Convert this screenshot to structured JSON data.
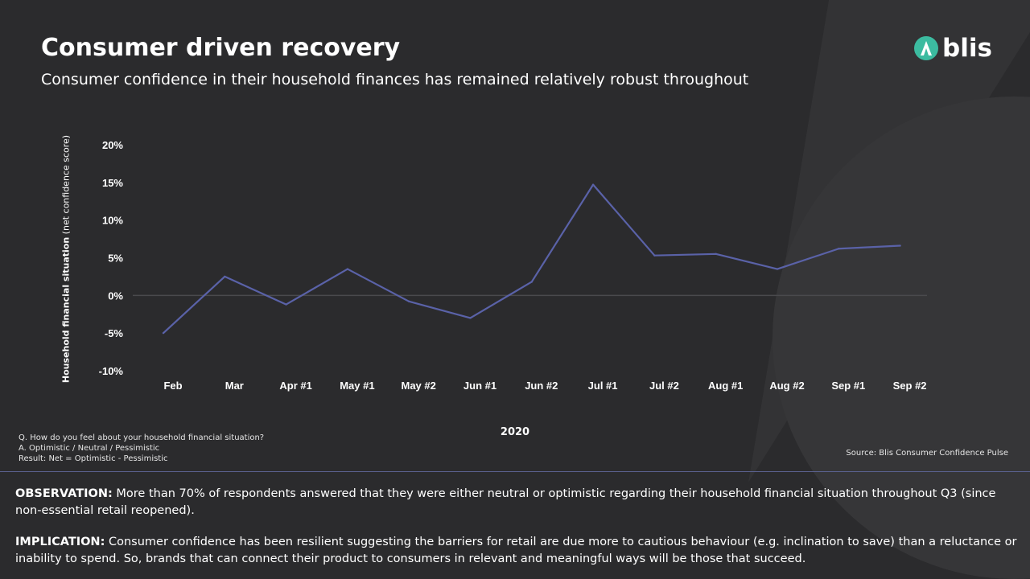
{
  "slide": {
    "title": "Consumer driven recovery",
    "subtitle": "Consumer confidence in their household finances has remained relatively robust throughout"
  },
  "logo": {
    "text": "blis",
    "icon": "blis-logo-icon",
    "color": "#3cbba0"
  },
  "chart_data": {
    "type": "line",
    "categories": [
      "Feb",
      "Mar",
      "Apr #1",
      "May #1",
      "May #2",
      "Jun #1",
      "Jun #2",
      "Jul #1",
      "Jul #2",
      "Aug #1",
      "Aug #2",
      "Sep #1",
      "Sep #2"
    ],
    "series": [
      {
        "values": [
          -5,
          2.5,
          -1.2,
          3.5,
          -0.8,
          -3,
          1.8,
          14.7,
          5.3,
          5.5,
          3.5,
          6.2,
          6.6
        ]
      }
    ],
    "yticks": [
      "20%",
      "15%",
      "10%",
      "5%",
      "0%",
      "-5%",
      "-10%"
    ],
    "ylim": [
      -10,
      20
    ],
    "ylabel_bold": "Household financial situation",
    "ylabel_rest": "(net confidence score)",
    "xlabel": "2020",
    "line_color": "#5a62a8",
    "zero_line": true
  },
  "notes": {
    "question": "Q. How do you feel about your household financial situation?",
    "answer": "A. Optimistic / Neutral / Pessimistic",
    "result": "Result: Net = Optimistic - Pessimistic",
    "source": "Source: Blis Consumer Confidence Pulse"
  },
  "observation": {
    "label": "OBSERVATION:",
    "text": " More than 70% of respondents answered that they were either neutral or optimistic regarding their household financial situation throughout Q3 (since non-essential retail reopened)."
  },
  "implication": {
    "label": "IMPLICATION:",
    "text": " Consumer confidence has been resilient suggesting the barriers for retail are due more to cautious behaviour (e.g. inclination to save) than a reluctance or inability to spend. So, brands that can connect their product to consumers in relevant and meaningful ways will be those that succeed."
  }
}
